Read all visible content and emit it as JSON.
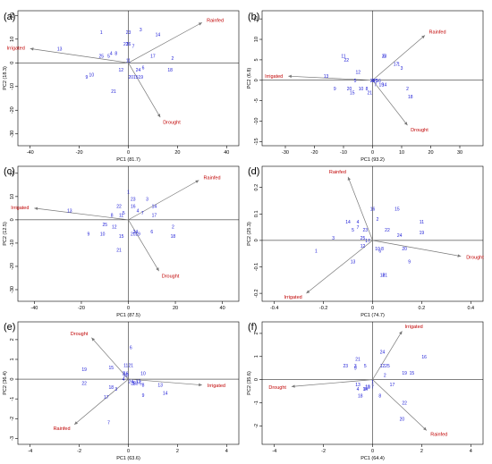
{
  "chart_data": [
    {
      "type": "scatter",
      "panel_label": "(a)",
      "xlabel": "PC1 (81.7)",
      "ylabel": "PC2 (18.3)",
      "xlim": [
        -45,
        45
      ],
      "ylim": [
        -35,
        22
      ],
      "xticks": [
        -40,
        -20,
        0,
        20,
        40
      ],
      "yticks": [
        -30,
        -20,
        -10,
        0,
        10,
        20
      ],
      "vectors": [
        {
          "label": "Rainfed",
          "x": 30,
          "y": 17
        },
        {
          "label": "Irrigated",
          "x": -40,
          "y": 6
        },
        {
          "label": "Drought",
          "x": 13,
          "y": -23
        }
      ],
      "points": [
        {
          "label": "1",
          "x": -11,
          "y": 13
        },
        {
          "label": "2",
          "x": 18,
          "y": 2
        },
        {
          "label": "3",
          "x": 5,
          "y": 14
        },
        {
          "label": "4",
          "x": -7,
          "y": 4
        },
        {
          "label": "5",
          "x": -8,
          "y": 3
        },
        {
          "label": "6",
          "x": 6,
          "y": -2
        },
        {
          "label": "7",
          "x": 2,
          "y": 7
        },
        {
          "label": "8",
          "x": -5,
          "y": 4
        },
        {
          "label": "9",
          "x": -17,
          "y": -6
        },
        {
          "label": "10",
          "x": -15,
          "y": -5
        },
        {
          "label": "11",
          "x": 0,
          "y": 1
        },
        {
          "label": "12",
          "x": -3,
          "y": -3
        },
        {
          "label": "13",
          "x": -28,
          "y": 6
        },
        {
          "label": "14",
          "x": 12,
          "y": 12
        },
        {
          "label": "15",
          "x": 3,
          "y": -6
        },
        {
          "label": "16",
          "x": 0,
          "y": 8
        },
        {
          "label": "17",
          "x": 10,
          "y": 3
        },
        {
          "label": "18",
          "x": 17,
          "y": -3
        },
        {
          "label": "19",
          "x": 5,
          "y": -6
        },
        {
          "label": "20",
          "x": 1,
          "y": -6
        },
        {
          "label": "21",
          "x": -6,
          "y": -12
        },
        {
          "label": "22",
          "x": -1,
          "y": 8
        },
        {
          "label": "23",
          "x": 0,
          "y": 13
        },
        {
          "label": "24",
          "x": 4,
          "y": -3
        },
        {
          "label": "25",
          "x": -11,
          "y": 3
        }
      ]
    },
    {
      "type": "scatter",
      "panel_label": "(b)",
      "xlabel": "PC1 (93.2)",
      "ylabel": "PC2 (6.8)",
      "xlim": [
        -38,
        38
      ],
      "ylim": [
        -16,
        17
      ],
      "xticks": [
        -30,
        -20,
        -10,
        0,
        10,
        20,
        30
      ],
      "yticks": [
        -15,
        -10,
        -5,
        0,
        5,
        10,
        15
      ],
      "vectors": [
        {
          "label": "Rainfed",
          "x": 18,
          "y": 11
        },
        {
          "label": "Irrigated",
          "x": -29,
          "y": 1
        },
        {
          "label": "Drought",
          "x": 12,
          "y": -11
        }
      ],
      "points": [
        {
          "label": "1",
          "x": 9,
          "y": 4
        },
        {
          "label": "2",
          "x": 12,
          "y": -2
        },
        {
          "label": "3",
          "x": 10,
          "y": 3
        },
        {
          "label": "4",
          "x": 0,
          "y": 0
        },
        {
          "label": "5",
          "x": -6,
          "y": 0
        },
        {
          "label": "6",
          "x": 4,
          "y": 6
        },
        {
          "label": "7",
          "x": 1,
          "y": -1
        },
        {
          "label": "8",
          "x": -2,
          "y": -2
        },
        {
          "label": "9",
          "x": -13,
          "y": -2
        },
        {
          "label": "10",
          "x": -4,
          "y": -2
        },
        {
          "label": "11",
          "x": -10,
          "y": 6
        },
        {
          "label": "12",
          "x": -5,
          "y": 2
        },
        {
          "label": "13",
          "x": -16,
          "y": 1
        },
        {
          "label": "14",
          "x": 4,
          "y": -1
        },
        {
          "label": "15",
          "x": -7,
          "y": -3
        },
        {
          "label": "16",
          "x": 2,
          "y": 0
        },
        {
          "label": "17",
          "x": 8,
          "y": 4
        },
        {
          "label": "18",
          "x": 13,
          "y": -4
        },
        {
          "label": "19",
          "x": 3,
          "y": -1
        },
        {
          "label": "20",
          "x": -8,
          "y": -2
        },
        {
          "label": "21",
          "x": -1,
          "y": -3
        },
        {
          "label": "22",
          "x": -9,
          "y": 5
        },
        {
          "label": "23",
          "x": 4,
          "y": 6
        },
        {
          "label": "24",
          "x": 0,
          "y": 0
        },
        {
          "label": "25",
          "x": 1,
          "y": 0
        }
      ]
    },
    {
      "type": "scatter",
      "panel_label": "(c)",
      "xlabel": "PC1 (87.5)",
      "ylabel": "PC2 (12.5)",
      "xlim": [
        -47,
        47
      ],
      "ylim": [
        -35,
        23
      ],
      "xticks": [
        -40,
        -20,
        0,
        20,
        40
      ],
      "yticks": [
        -30,
        -20,
        -10,
        0,
        10,
        20
      ],
      "vectors": [
        {
          "label": "Rainfed",
          "x": 30,
          "y": 17
        },
        {
          "label": "Irrigated",
          "x": -40,
          "y": 5
        },
        {
          "label": "Drought",
          "x": 13,
          "y": -22
        }
      ],
      "points": [
        {
          "label": "1",
          "x": 0,
          "y": 12
        },
        {
          "label": "2",
          "x": 19,
          "y": -3
        },
        {
          "label": "3",
          "x": 8,
          "y": 9
        },
        {
          "label": "4",
          "x": 4,
          "y": 4
        },
        {
          "label": "5",
          "x": -2,
          "y": 3
        },
        {
          "label": "6",
          "x": 10,
          "y": -5
        },
        {
          "label": "7",
          "x": 6,
          "y": 3
        },
        {
          "label": "8",
          "x": -7,
          "y": 2
        },
        {
          "label": "9",
          "x": -17,
          "y": -6
        },
        {
          "label": "10",
          "x": -11,
          "y": -6
        },
        {
          "label": "11",
          "x": -3,
          "y": 2
        },
        {
          "label": "12",
          "x": -6,
          "y": -3
        },
        {
          "label": "13",
          "x": -25,
          "y": 4
        },
        {
          "label": "14",
          "x": 11,
          "y": 6
        },
        {
          "label": "15",
          "x": -3,
          "y": -7
        },
        {
          "label": "16",
          "x": 2,
          "y": 6
        },
        {
          "label": "17",
          "x": 11,
          "y": 2
        },
        {
          "label": "18",
          "x": 19,
          "y": -7
        },
        {
          "label": "19",
          "x": 4,
          "y": -6
        },
        {
          "label": "20",
          "x": 2,
          "y": -6
        },
        {
          "label": "21",
          "x": -4,
          "y": -13
        },
        {
          "label": "22",
          "x": -4,
          "y": 6
        },
        {
          "label": "23",
          "x": 2,
          "y": 9
        },
        {
          "label": "24",
          "x": 3,
          "y": -5
        },
        {
          "label": "25",
          "x": -10,
          "y": -2
        }
      ]
    },
    {
      "type": "scatter",
      "panel_label": "(d)",
      "xlabel": "PC1 (74.7)",
      "ylabel": "PC2 (25.3)",
      "xlim": [
        -0.45,
        0.45
      ],
      "ylim": [
        -0.23,
        0.28
      ],
      "xticks": [
        -0.4,
        -0.2,
        0,
        0.2,
        0.4
      ],
      "yticks": [
        -0.2,
        -0.1,
        0,
        0.1,
        0.2
      ],
      "vectors": [
        {
          "label": "Rainfed",
          "x": -0.1,
          "y": 0.24
        },
        {
          "label": "Irrigated",
          "x": -0.27,
          "y": -0.2
        },
        {
          "label": "Drought",
          "x": 0.36,
          "y": -0.06
        }
      ],
      "points": [
        {
          "label": "1",
          "x": -0.23,
          "y": -0.04
        },
        {
          "label": "2",
          "x": 0.02,
          "y": 0.08
        },
        {
          "label": "3",
          "x": -0.16,
          "y": 0.01
        },
        {
          "label": "4",
          "x": -0.06,
          "y": 0.07
        },
        {
          "label": "5",
          "x": -0.08,
          "y": 0.04
        },
        {
          "label": "6",
          "x": 0.03,
          "y": -0.04
        },
        {
          "label": "7",
          "x": -0.06,
          "y": 0.05
        },
        {
          "label": "8",
          "x": 0.04,
          "y": -0.03
        },
        {
          "label": "9",
          "x": 0.15,
          "y": -0.08
        },
        {
          "label": "10",
          "x": 0.02,
          "y": -0.03
        },
        {
          "label": "11",
          "x": 0.2,
          "y": 0.07
        },
        {
          "label": "12",
          "x": -0.04,
          "y": -0.02
        },
        {
          "label": "13",
          "x": -0.08,
          "y": -0.08
        },
        {
          "label": "14",
          "x": -0.1,
          "y": 0.07
        },
        {
          "label": "15",
          "x": 0.1,
          "y": 0.12
        },
        {
          "label": "16",
          "x": 0.0,
          "y": 0.12
        },
        {
          "label": "17",
          "x": -0.02,
          "y": 0.0
        },
        {
          "label": "18",
          "x": 0.04,
          "y": -0.13
        },
        {
          "label": "19",
          "x": 0.2,
          "y": 0.03
        },
        {
          "label": "20",
          "x": 0.13,
          "y": -0.03
        },
        {
          "label": "21",
          "x": 0.05,
          "y": -0.13
        },
        {
          "label": "22",
          "x": 0.06,
          "y": 0.04
        },
        {
          "label": "23",
          "x": -0.03,
          "y": 0.04
        },
        {
          "label": "24",
          "x": 0.11,
          "y": 0.02
        },
        {
          "label": "25",
          "x": -0.04,
          "y": 0.01
        }
      ]
    },
    {
      "type": "scatter",
      "panel_label": "(e)",
      "xlabel": "PC1 (63.6)",
      "ylabel": "PC2 (36.4)",
      "xlim": [
        -4.5,
        4.5
      ],
      "ylim": [
        -3.3,
        2.9
      ],
      "xticks": [
        -4,
        -2,
        0,
        2,
        4
      ],
      "yticks": [
        -3,
        -2,
        -1,
        0,
        1,
        2
      ],
      "vectors": [
        {
          "label": "Drought",
          "x": -1.5,
          "y": 2.1
        },
        {
          "label": "Irrigated",
          "x": 3.0,
          "y": -0.3
        },
        {
          "label": "Rainfed",
          "x": -2.2,
          "y": -2.3
        }
      ],
      "points": [
        {
          "label": "1",
          "x": 0.2,
          "y": -0.2
        },
        {
          "label": "2",
          "x": -0.2,
          "y": 0.3
        },
        {
          "label": "3",
          "x": -0.5,
          "y": -0.5
        },
        {
          "label": "4",
          "x": -0.2,
          "y": 0.0
        },
        {
          "label": "5",
          "x": 0.5,
          "y": -0.2
        },
        {
          "label": "6",
          "x": 0.1,
          "y": 1.6
        },
        {
          "label": "7",
          "x": -0.8,
          "y": -2.2
        },
        {
          "label": "8",
          "x": 0.6,
          "y": -0.3
        },
        {
          "label": "9",
          "x": 0.6,
          "y": -0.8
        },
        {
          "label": "10",
          "x": 0.6,
          "y": 0.3
        },
        {
          "label": "11",
          "x": -0.1,
          "y": 0.7
        },
        {
          "label": "12",
          "x": 0.4,
          "y": -0.1
        },
        {
          "label": "13",
          "x": 1.3,
          "y": -0.3
        },
        {
          "label": "14",
          "x": 1.5,
          "y": -0.7
        },
        {
          "label": "15",
          "x": -0.7,
          "y": 0.6
        },
        {
          "label": "16",
          "x": -0.1,
          "y": 0.3
        },
        {
          "label": "17",
          "x": -0.9,
          "y": -0.9
        },
        {
          "label": "18",
          "x": -0.7,
          "y": -0.4
        },
        {
          "label": "19",
          "x": -1.8,
          "y": 0.5
        },
        {
          "label": "20",
          "x": -0.1,
          "y": 0.2
        },
        {
          "label": "21",
          "x": 0.1,
          "y": 0.7
        },
        {
          "label": "22",
          "x": -1.8,
          "y": -0.2
        },
        {
          "label": "23",
          "x": 0.3,
          "y": -0.2
        },
        {
          "label": "24",
          "x": 0.1,
          "y": -0.1
        },
        {
          "label": "25",
          "x": 0.2,
          "y": -0.2
        }
      ]
    },
    {
      "type": "scatter",
      "panel_label": "(f)",
      "xlabel": "PC1 (64.4)",
      "ylabel": "PC2 (35.6)",
      "xlim": [
        -4.5,
        4.5
      ],
      "ylim": [
        -2.8,
        2.5
      ],
      "xticks": [
        -4,
        -2,
        0,
        2,
        4
      ],
      "yticks": [
        -2,
        -1,
        0,
        1,
        2
      ],
      "vectors": [
        {
          "label": "Irrigated",
          "x": 1.2,
          "y": 2.1
        },
        {
          "label": "Drought",
          "x": -3.3,
          "y": -0.3
        },
        {
          "label": "Rainfed",
          "x": 2.2,
          "y": -2.2
        }
      ],
      "points": [
        {
          "label": "1",
          "x": 0.0,
          "y": -0.1
        },
        {
          "label": "2",
          "x": 0.5,
          "y": 0.2
        },
        {
          "label": "3",
          "x": -0.7,
          "y": 0.6
        },
        {
          "label": "4",
          "x": -0.6,
          "y": -0.4
        },
        {
          "label": "5",
          "x": -0.3,
          "y": 0.6
        },
        {
          "label": "6",
          "x": -0.3,
          "y": -0.4
        },
        {
          "label": "7",
          "x": 0.0,
          "y": -0.3
        },
        {
          "label": "8",
          "x": 0.3,
          "y": -0.7
        },
        {
          "label": "9",
          "x": -0.7,
          "y": 0.5
        },
        {
          "label": "10",
          "x": -0.2,
          "y": -0.3
        },
        {
          "label": "11",
          "x": -0.2,
          "y": -0.3
        },
        {
          "label": "12",
          "x": 0.4,
          "y": 0.6
        },
        {
          "label": "13",
          "x": -0.6,
          "y": -0.2
        },
        {
          "label": "14",
          "x": -0.3,
          "y": -0.4
        },
        {
          "label": "15",
          "x": 1.6,
          "y": 0.3
        },
        {
          "label": "16",
          "x": 2.1,
          "y": 1.0
        },
        {
          "label": "17",
          "x": 0.8,
          "y": -0.2
        },
        {
          "label": "18",
          "x": -0.5,
          "y": -0.7
        },
        {
          "label": "19",
          "x": 1.3,
          "y": 0.3
        },
        {
          "label": "20",
          "x": 1.2,
          "y": -1.7
        },
        {
          "label": "21",
          "x": -0.6,
          "y": 0.9
        },
        {
          "label": "22",
          "x": 1.3,
          "y": -1.0
        },
        {
          "label": "23",
          "x": -1.1,
          "y": 0.6
        },
        {
          "label": "24",
          "x": 0.4,
          "y": 1.2
        },
        {
          "label": "25",
          "x": 0.6,
          "y": 0.6
        }
      ]
    }
  ]
}
